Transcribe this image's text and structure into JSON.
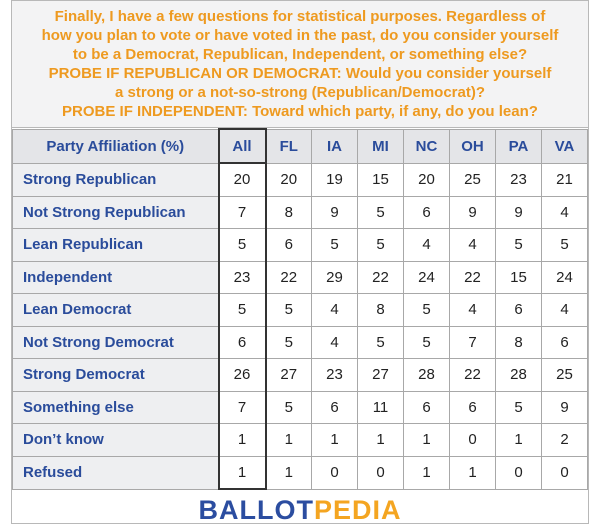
{
  "header": {
    "lines": [
      "Finally, I have a few questions for statistical purposes. Regardless of",
      "how you plan to vote or have voted in the past, do you consider yourself",
      "to be a Democrat, Republican, Independent, or something else?",
      "PROBE IF REPUBLICAN OR DEMOCRAT: Would you consider yourself",
      "a strong or a not-so-strong (Republican/Democrat)?",
      "PROBE IF INDEPENDENT: Toward which party, if any, do you lean?"
    ]
  },
  "table": {
    "columns": [
      "Party Affiliation (%)",
      "All",
      "FL",
      "IA",
      "MI",
      "NC",
      "OH",
      "PA",
      "VA"
    ],
    "rows": [
      [
        "Strong Republican",
        20,
        20,
        19,
        15,
        20,
        25,
        23,
        21
      ],
      [
        "Not Strong Republican",
        7,
        8,
        9,
        5,
        6,
        9,
        9,
        4
      ],
      [
        "Lean Republican",
        5,
        6,
        5,
        5,
        4,
        4,
        5,
        5
      ],
      [
        "Independent",
        23,
        22,
        29,
        22,
        24,
        22,
        15,
        24
      ],
      [
        "Lean Democrat",
        5,
        5,
        4,
        8,
        5,
        4,
        6,
        4
      ],
      [
        "Not Strong Democrat",
        6,
        5,
        4,
        5,
        5,
        7,
        8,
        6
      ],
      [
        "Strong Democrat",
        26,
        27,
        23,
        27,
        28,
        22,
        28,
        25
      ],
      [
        "Something else",
        7,
        5,
        6,
        11,
        6,
        6,
        5,
        9
      ],
      [
        "Don’t know",
        1,
        1,
        1,
        1,
        1,
        0,
        1,
        2
      ],
      [
        "Refused",
        1,
        1,
        0,
        0,
        1,
        1,
        0,
        0
      ]
    ]
  },
  "logo": {
    "part1": "BALLOT",
    "part2": "PEDIA"
  }
}
